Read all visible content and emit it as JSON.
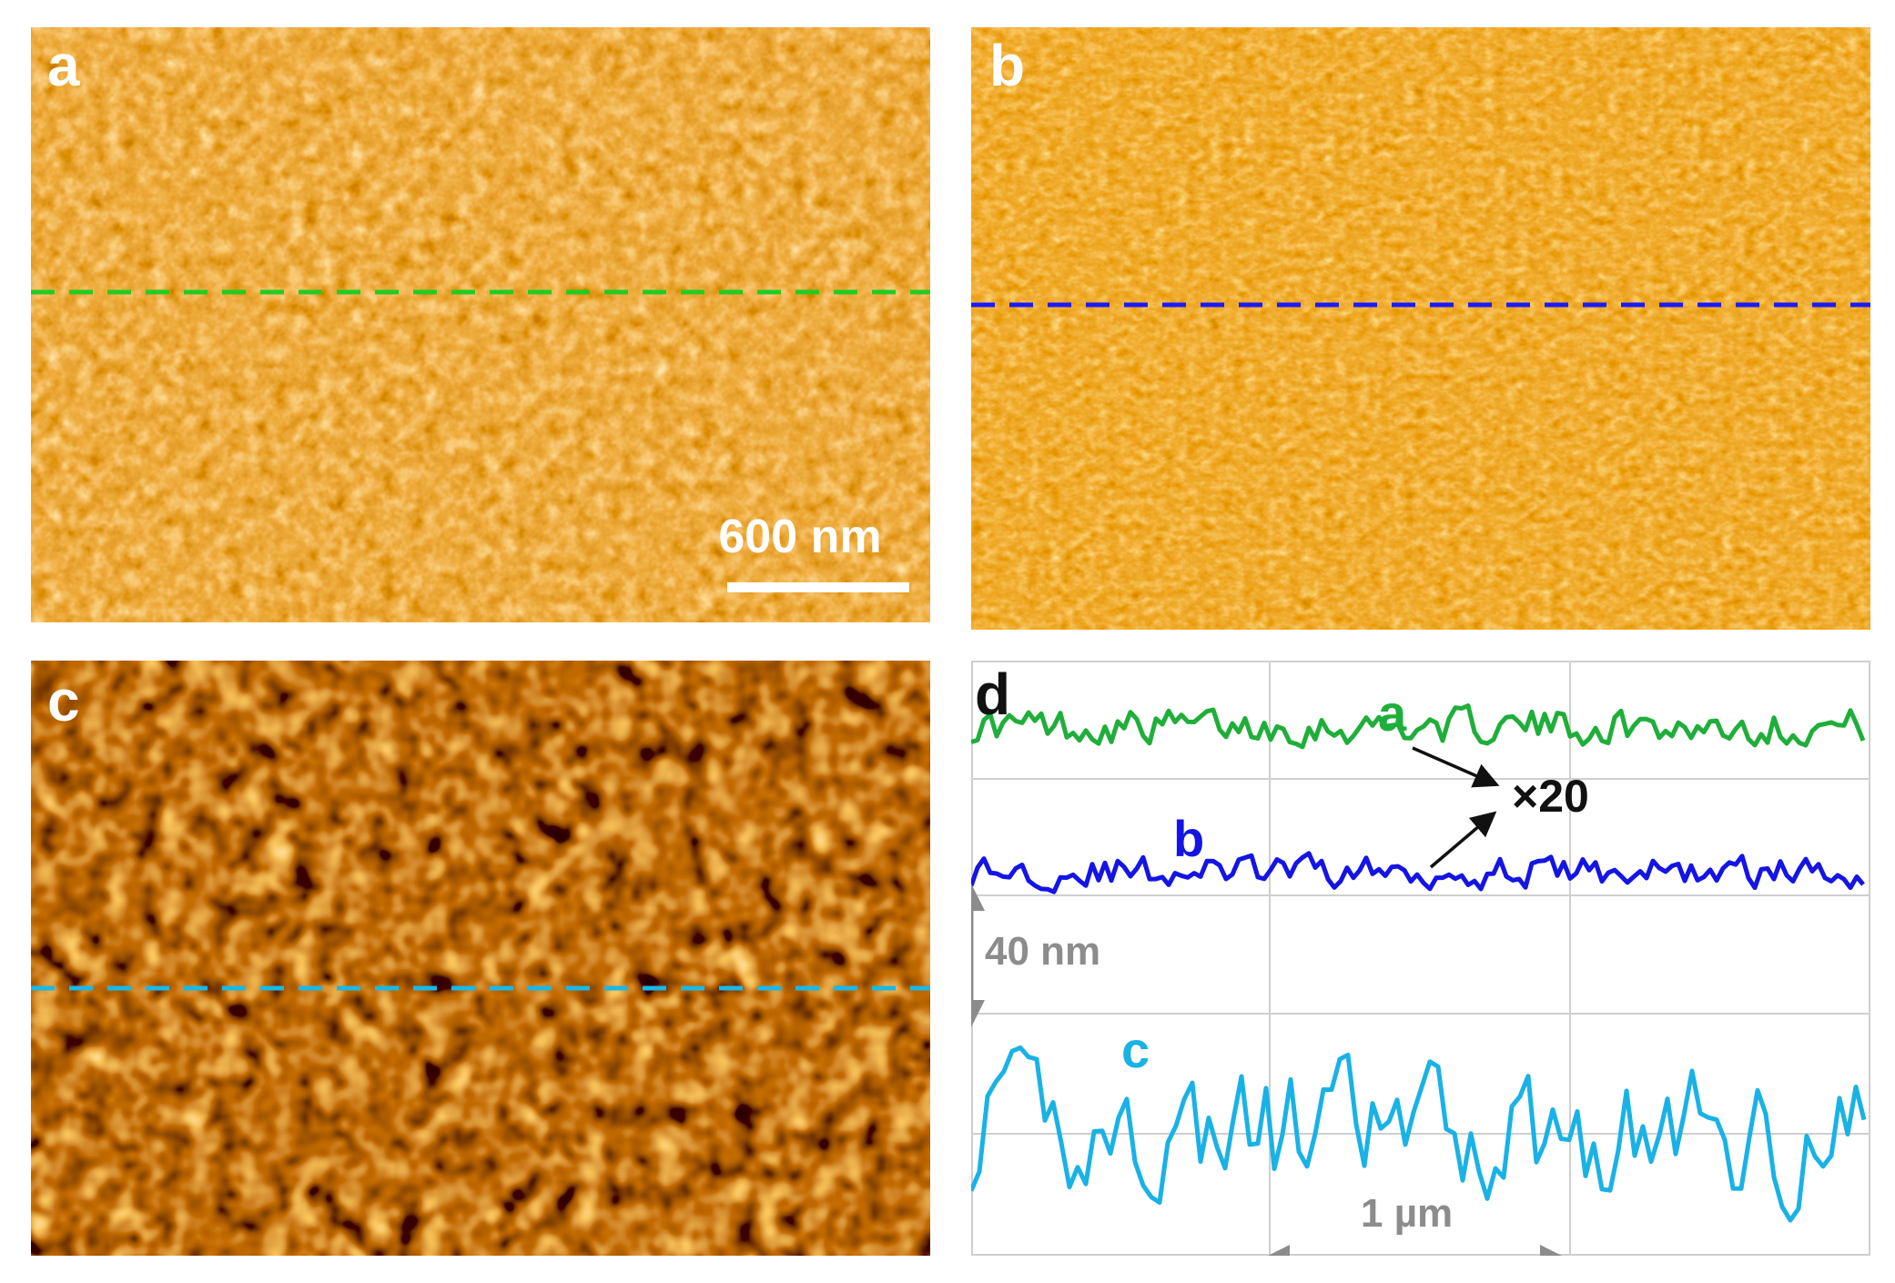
{
  "figure": {
    "panels": [
      {
        "id": "a",
        "label": "a",
        "line_color": "#22cc22"
      },
      {
        "id": "b",
        "label": "b",
        "line_color": "#1a1aff"
      },
      {
        "id": "c",
        "label": "c",
        "line_color": "#19b8e8"
      },
      {
        "id": "d",
        "label": "d"
      }
    ],
    "scale_bar_label": "600 nm",
    "colormap": [
      "#1a0000",
      "#5a1600",
      "#a33a00",
      "#d86a10",
      "#f6a742",
      "#ffe49a",
      "#ffffff"
    ]
  },
  "profiles": {
    "series": [
      {
        "name": "a",
        "color": "#1fae3a"
      },
      {
        "name": "b",
        "color": "#1414e6"
      },
      {
        "name": "c",
        "color": "#19b2e6"
      }
    ],
    "magnification_label": "×20",
    "vertical_scale_label": "40 nm",
    "horizontal_scale_label": "1 µm",
    "annotation_color": "#8c8c8c"
  }
}
